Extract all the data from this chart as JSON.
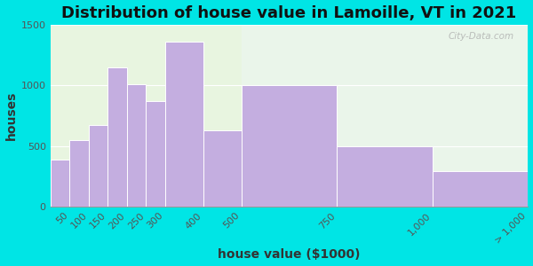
{
  "title": "Distribution of house value in Lamoille, VT in 2021",
  "xlabel": "house value ($1000)",
  "ylabel": "houses",
  "bin_edges": [
    0,
    50,
    100,
    150,
    200,
    250,
    300,
    400,
    500,
    750,
    1000,
    1250
  ],
  "tick_positions": [
    50,
    100,
    150,
    200,
    250,
    300,
    400,
    500,
    750,
    1000,
    1250
  ],
  "tick_labels": [
    "50",
    "100",
    "150",
    "200",
    "250",
    "300",
    "400",
    "500",
    "750",
    "1,000",
    "> 1,000"
  ],
  "bar_values": [
    390,
    550,
    670,
    1150,
    1010,
    870,
    1360,
    630,
    1005,
    500,
    295
  ],
  "bar_color": "#c4aee0",
  "bar_edge_color": "#ffffff",
  "ylim": [
    0,
    1500
  ],
  "yticks": [
    0,
    500,
    1000,
    1500
  ],
  "background_color": "#00e5e5",
  "plot_bg_color": "#e8f5e0",
  "plot_bg_color_right": "#eaf5ea",
  "title_fontsize": 13,
  "axis_label_fontsize": 10,
  "tick_fontsize": 8,
  "watermark": "City-Data.com"
}
